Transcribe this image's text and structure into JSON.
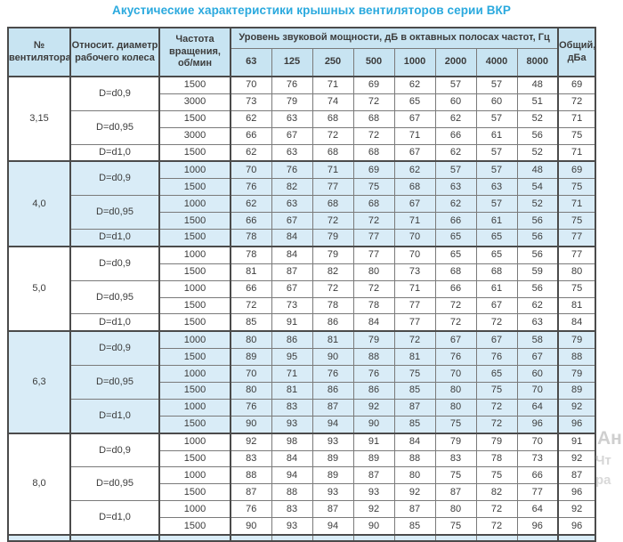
{
  "title": "Акустические характеристики крышных вентиляторов серии ВКР",
  "colors": {
    "title_accent": "#2aa9de",
    "header_bg": "#c8e4f2",
    "shaded_group_bg": "#d9ecf7",
    "border_major": "#4b4b4b",
    "border_minor": "#7a7a7a",
    "text": "#3c3c3c"
  },
  "table": {
    "headers": {
      "fan_no": "№\nвентилятора",
      "diameter": "Относит. диаметр\nрабочего колеса",
      "speed": "Частота\nвращения,\nоб/мин",
      "spl_span": "Уровень звуковой мощности, дБ в октавных полосах частот, Гц",
      "frequencies": [
        "63",
        "125",
        "250",
        "500",
        "1000",
        "2000",
        "4000",
        "8000"
      ],
      "total": "Общий,\nдБа"
    },
    "groups": [
      {
        "fan": "3,15",
        "shaded": false,
        "subgroups": [
          {
            "diameter": "D=d0,9",
            "rows": [
              {
                "speed": "1500",
                "levels": [
                  70,
                  76,
                  71,
                  69,
                  62,
                  57,
                  57,
                  48
                ],
                "total": 69
              },
              {
                "speed": "3000",
                "levels": [
                  73,
                  79,
                  74,
                  72,
                  65,
                  60,
                  60,
                  51
                ],
                "total": 72
              }
            ]
          },
          {
            "diameter": "D=d0,95",
            "rows": [
              {
                "speed": "1500",
                "levels": [
                  62,
                  63,
                  68,
                  68,
                  67,
                  62,
                  57,
                  52
                ],
                "total": 71
              },
              {
                "speed": "3000",
                "levels": [
                  66,
                  67,
                  72,
                  72,
                  71,
                  66,
                  61,
                  56
                ],
                "total": 75
              }
            ]
          },
          {
            "diameter": "D=d1,0",
            "rows": [
              {
                "speed": "1500",
                "levels": [
                  62,
                  63,
                  68,
                  68,
                  67,
                  62,
                  57,
                  52
                ],
                "total": 71
              }
            ]
          }
        ]
      },
      {
        "fan": "4,0",
        "shaded": true,
        "subgroups": [
          {
            "diameter": "D=d0,9",
            "rows": [
              {
                "speed": "1000",
                "levels": [
                  70,
                  76,
                  71,
                  69,
                  62,
                  57,
                  57,
                  48
                ],
                "total": 69
              },
              {
                "speed": "1500",
                "levels": [
                  76,
                  82,
                  77,
                  75,
                  68,
                  63,
                  63,
                  54
                ],
                "total": 75
              }
            ]
          },
          {
            "diameter": "D=d0,95",
            "rows": [
              {
                "speed": "1000",
                "levels": [
                  62,
                  63,
                  68,
                  68,
                  67,
                  62,
                  57,
                  52
                ],
                "total": 71
              },
              {
                "speed": "1500",
                "levels": [
                  66,
                  67,
                  72,
                  72,
                  71,
                  66,
                  61,
                  56
                ],
                "total": 75
              }
            ]
          },
          {
            "diameter": "D=d1,0",
            "rows": [
              {
                "speed": "1500",
                "levels": [
                  78,
                  84,
                  79,
                  77,
                  70,
                  65,
                  65,
                  56
                ],
                "total": 77
              }
            ]
          }
        ]
      },
      {
        "fan": "5,0",
        "shaded": false,
        "subgroups": [
          {
            "diameter": "D=d0,9",
            "rows": [
              {
                "speed": "1000",
                "levels": [
                  78,
                  84,
                  79,
                  77,
                  70,
                  65,
                  65,
                  56
                ],
                "total": 77
              },
              {
                "speed": "1500",
                "levels": [
                  81,
                  87,
                  82,
                  80,
                  73,
                  68,
                  68,
                  59
                ],
                "total": 80
              }
            ]
          },
          {
            "diameter": "D=d0,95",
            "rows": [
              {
                "speed": "1000",
                "levels": [
                  66,
                  67,
                  72,
                  72,
                  71,
                  66,
                  61,
                  56
                ],
                "total": 75
              },
              {
                "speed": "1500",
                "levels": [
                  72,
                  73,
                  78,
                  78,
                  77,
                  72,
                  67,
                  62
                ],
                "total": 81
              }
            ]
          },
          {
            "diameter": "D=d1,0",
            "rows": [
              {
                "speed": "1500",
                "levels": [
                  85,
                  91,
                  86,
                  84,
                  77,
                  72,
                  72,
                  63
                ],
                "total": 84
              }
            ]
          }
        ]
      },
      {
        "fan": "6,3",
        "shaded": true,
        "subgroups": [
          {
            "diameter": "D=d0,9",
            "rows": [
              {
                "speed": "1000",
                "levels": [
                  80,
                  86,
                  81,
                  79,
                  72,
                  67,
                  67,
                  58
                ],
                "total": 79
              },
              {
                "speed": "1500",
                "levels": [
                  89,
                  95,
                  90,
                  88,
                  81,
                  76,
                  76,
                  67
                ],
                "total": 88
              }
            ]
          },
          {
            "diameter": "D=d0,95",
            "rows": [
              {
                "speed": "1000",
                "levels": [
                  70,
                  71,
                  76,
                  76,
                  75,
                  70,
                  65,
                  60
                ],
                "total": 79
              },
              {
                "speed": "1500",
                "levels": [
                  80,
                  81,
                  86,
                  86,
                  85,
                  80,
                  75,
                  70
                ],
                "total": 89
              }
            ]
          },
          {
            "diameter": "D=d1,0",
            "rows": [
              {
                "speed": "1000",
                "levels": [
                  76,
                  83,
                  87,
                  92,
                  87,
                  80,
                  72,
                  64
                ],
                "total": 92
              },
              {
                "speed": "1500",
                "levels": [
                  90,
                  93,
                  94,
                  90,
                  85,
                  75,
                  72,
                  96
                ],
                "total": 96
              }
            ]
          }
        ]
      },
      {
        "fan": "8,0",
        "shaded": false,
        "subgroups": [
          {
            "diameter": "D=d0,9",
            "rows": [
              {
                "speed": "1000",
                "levels": [
                  92,
                  98,
                  93,
                  91,
                  84,
                  79,
                  79,
                  70
                ],
                "total": 91
              },
              {
                "speed": "1500",
                "levels": [
                  83,
                  84,
                  89,
                  89,
                  88,
                  83,
                  78,
                  73
                ],
                "total": 92
              }
            ]
          },
          {
            "diameter": "D=d0,95",
            "rows": [
              {
                "speed": "1000",
                "levels": [
                  88,
                  94,
                  89,
                  87,
                  80,
                  75,
                  75,
                  66
                ],
                "total": 87
              },
              {
                "speed": "1500",
                "levels": [
                  87,
                  88,
                  93,
                  93,
                  92,
                  87,
                  82,
                  77
                ],
                "total": 96
              }
            ]
          },
          {
            "diameter": "D=d1,0",
            "rows": [
              {
                "speed": "1000",
                "levels": [
                  76,
                  83,
                  87,
                  92,
                  87,
                  80,
                  72,
                  64
                ],
                "total": 92
              },
              {
                "speed": "1500",
                "levels": [
                  90,
                  93,
                  94,
                  90,
                  85,
                  75,
                  72,
                  96
                ],
                "total": 96
              }
            ]
          }
        ]
      }
    ],
    "truncated_next_group_visible": true
  },
  "watermark": {
    "fragments": [
      "Ан",
      "Чт",
      "ра"
    ]
  }
}
